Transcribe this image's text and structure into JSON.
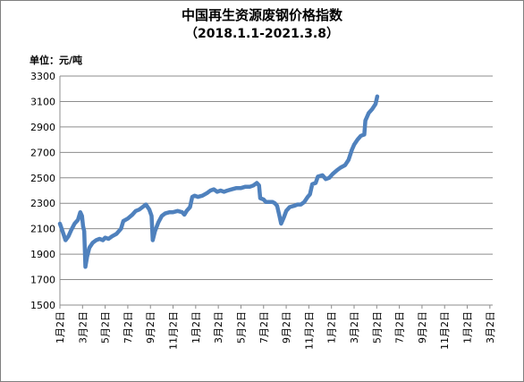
{
  "chart_data": {
    "type": "line",
    "title": "中国再生资源废钢价格指数",
    "subtitle": "（2018.1.1-2021.3.8）",
    "ylabel": "单位：元/吨",
    "xlabel": "",
    "ylim": [
      1500,
      3300
    ],
    "yticks": [
      1500,
      1700,
      1900,
      2100,
      2300,
      2500,
      2700,
      2900,
      3100,
      3300
    ],
    "xlim": [
      0,
      38.25
    ],
    "xticks": [
      {
        "x": 0,
        "label": "1月2日"
      },
      {
        "x": 2,
        "label": "3月2日"
      },
      {
        "x": 4,
        "label": "5月2日"
      },
      {
        "x": 6,
        "label": "7月2日"
      },
      {
        "x": 8,
        "label": "9月2日"
      },
      {
        "x": 10,
        "label": "11月2日"
      },
      {
        "x": 12,
        "label": "1月2日"
      },
      {
        "x": 14,
        "label": "3月2日"
      },
      {
        "x": 16,
        "label": "5月2日"
      },
      {
        "x": 18,
        "label": "7月2日"
      },
      {
        "x": 20,
        "label": "9月2日"
      },
      {
        "x": 22,
        "label": "11月2日"
      },
      {
        "x": 24,
        "label": "1月2日"
      },
      {
        "x": 26,
        "label": "3月2日"
      },
      {
        "x": 28,
        "label": "5月2日"
      },
      {
        "x": 30,
        "label": "7月2日"
      },
      {
        "x": 32,
        "label": "9月2日"
      },
      {
        "x": 34,
        "label": "11月2日"
      },
      {
        "x": 36,
        "label": "1月2日"
      },
      {
        "x": 38,
        "label": "3月2日"
      }
    ],
    "grid": true,
    "legend": "none",
    "series": [
      {
        "color": "#4f81bd",
        "points": [
          [
            0,
            2140
          ],
          [
            0.25,
            2075
          ],
          [
            0.5,
            2010
          ],
          [
            0.75,
            2040
          ],
          [
            1.0,
            2090
          ],
          [
            1.3,
            2140
          ],
          [
            1.6,
            2170
          ],
          [
            1.8,
            2230
          ],
          [
            1.95,
            2200
          ],
          [
            2.05,
            2120
          ],
          [
            2.15,
            2080
          ],
          [
            2.25,
            1800
          ],
          [
            2.4,
            1880
          ],
          [
            2.6,
            1950
          ],
          [
            2.9,
            1990
          ],
          [
            3.2,
            2010
          ],
          [
            3.5,
            2020
          ],
          [
            3.8,
            2010
          ],
          [
            4.0,
            2030
          ],
          [
            4.3,
            2020
          ],
          [
            4.6,
            2040
          ],
          [
            5.0,
            2060
          ],
          [
            5.4,
            2100
          ],
          [
            5.6,
            2160
          ],
          [
            6.0,
            2180
          ],
          [
            6.4,
            2210
          ],
          [
            6.7,
            2240
          ],
          [
            7.0,
            2250
          ],
          [
            7.3,
            2270
          ],
          [
            7.6,
            2290
          ],
          [
            7.9,
            2250
          ],
          [
            8.1,
            2200
          ],
          [
            8.2,
            2010
          ],
          [
            8.4,
            2080
          ],
          [
            8.7,
            2150
          ],
          [
            9.0,
            2200
          ],
          [
            9.3,
            2220
          ],
          [
            9.7,
            2230
          ],
          [
            10.0,
            2230
          ],
          [
            10.4,
            2240
          ],
          [
            10.8,
            2230
          ],
          [
            11.0,
            2210
          ],
          [
            11.2,
            2240
          ],
          [
            11.5,
            2270
          ],
          [
            11.7,
            2350
          ],
          [
            11.9,
            2360
          ],
          [
            12.2,
            2350
          ],
          [
            12.6,
            2360
          ],
          [
            13.0,
            2380
          ],
          [
            13.3,
            2400
          ],
          [
            13.6,
            2410
          ],
          [
            13.9,
            2390
          ],
          [
            14.2,
            2400
          ],
          [
            14.5,
            2390
          ],
          [
            14.8,
            2400
          ],
          [
            15.2,
            2410
          ],
          [
            15.6,
            2420
          ],
          [
            16.0,
            2420
          ],
          [
            16.4,
            2430
          ],
          [
            16.8,
            2430
          ],
          [
            17.1,
            2440
          ],
          [
            17.4,
            2460
          ],
          [
            17.6,
            2440
          ],
          [
            17.7,
            2340
          ],
          [
            18.0,
            2330
          ],
          [
            18.2,
            2310
          ],
          [
            18.5,
            2310
          ],
          [
            18.8,
            2310
          ],
          [
            19.0,
            2300
          ],
          [
            19.2,
            2280
          ],
          [
            19.4,
            2200
          ],
          [
            19.55,
            2140
          ],
          [
            19.8,
            2190
          ],
          [
            20.0,
            2240
          ],
          [
            20.3,
            2270
          ],
          [
            20.7,
            2280
          ],
          [
            21.0,
            2290
          ],
          [
            21.3,
            2290
          ],
          [
            21.6,
            2310
          ],
          [
            21.9,
            2350
          ],
          [
            22.1,
            2370
          ],
          [
            22.3,
            2450
          ],
          [
            22.6,
            2460
          ],
          [
            22.8,
            2510
          ],
          [
            23.2,
            2520
          ],
          [
            23.5,
            2490
          ],
          [
            23.8,
            2500
          ],
          [
            24.1,
            2530
          ],
          [
            24.5,
            2560
          ],
          [
            24.8,
            2580
          ],
          [
            25.2,
            2600
          ],
          [
            25.5,
            2640
          ],
          [
            25.8,
            2720
          ],
          [
            26.0,
            2760
          ],
          [
            26.3,
            2800
          ],
          [
            26.6,
            2830
          ],
          [
            26.9,
            2840
          ],
          [
            27.0,
            2950
          ],
          [
            27.3,
            3010
          ],
          [
            27.6,
            3040
          ],
          [
            27.9,
            3080
          ],
          [
            28.05,
            3140
          ]
        ]
      }
    ]
  }
}
